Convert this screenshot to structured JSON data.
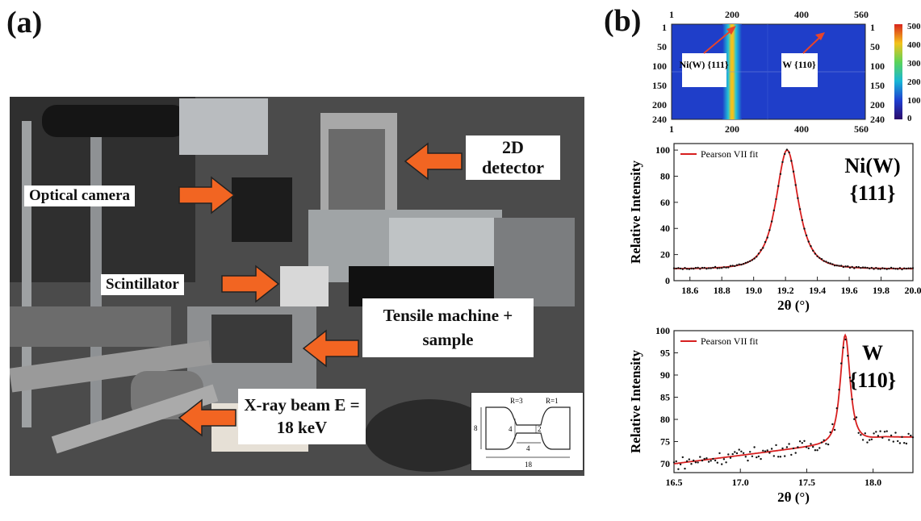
{
  "panel_a": {
    "label": "(a)",
    "callouts": {
      "detector": "2D detector",
      "camera": "Optical camera",
      "scintillator": "Scintillator",
      "tensile": "Tensile machine + sample",
      "xray": "X-ray beam E = 18 keV"
    },
    "inset": {
      "r3": "R=3",
      "r1": "R=1",
      "d8": "8",
      "d4a": "4",
      "d2": "2",
      "d4b": "4",
      "d18": "18"
    },
    "colors": {
      "arrow": "#f26522",
      "arrow_edge": "#222222"
    }
  },
  "panel_b": {
    "label": "(b)",
    "detector_image": {
      "top_ticks": [
        "1",
        "200",
        "400",
        "560"
      ],
      "bottom_ticks": [
        "1",
        "200",
        "400",
        "560"
      ],
      "left_ticks": [
        "1",
        "50",
        "100",
        "150",
        "200",
        "240"
      ],
      "right_ticks": [
        "1",
        "50",
        "100",
        "150",
        "200",
        "240"
      ],
      "annot_ni": "Ni(W) {111}",
      "annot_w": "W {110}",
      "colorbar_ticks": [
        "500",
        "400",
        "300",
        "200",
        "100",
        "0"
      ]
    }
  },
  "chart_data": [
    {
      "type": "scatter",
      "title": "Ni(W) {111}",
      "legend": "Pearson VII fit",
      "legend_position": "top-left",
      "xlabel": "2θ (°)",
      "ylabel": "Relative Intensity",
      "xlim": [
        18.5,
        20.0
      ],
      "ylim": [
        0,
        105
      ],
      "x_ticks": [
        "18.6",
        "18.8",
        "19.0",
        "19.2",
        "19.4",
        "19.6",
        "19.8",
        "20.0"
      ],
      "y_ticks": [
        "0",
        "20",
        "40",
        "60",
        "80",
        "100"
      ],
      "fit": {
        "center": 19.21,
        "height": 100,
        "baseline": 9,
        "hwhm": 0.085
      }
    },
    {
      "type": "scatter",
      "title": "W {110}",
      "legend": "Pearson VII fit",
      "legend_position": "top-left",
      "xlabel": "2θ (°)",
      "ylabel": "Relative Intensity",
      "xlim": [
        16.5,
        18.3
      ],
      "ylim": [
        68,
        100
      ],
      "x_ticks": [
        "16.5",
        "17.0",
        "17.5",
        "18.0"
      ],
      "y_ticks": [
        "70",
        "75",
        "80",
        "85",
        "90",
        "95",
        "100"
      ],
      "fit": {
        "center": 17.79,
        "height": 99,
        "baseline_start": 70,
        "baseline_end": 76,
        "hwhm": 0.045
      }
    }
  ]
}
